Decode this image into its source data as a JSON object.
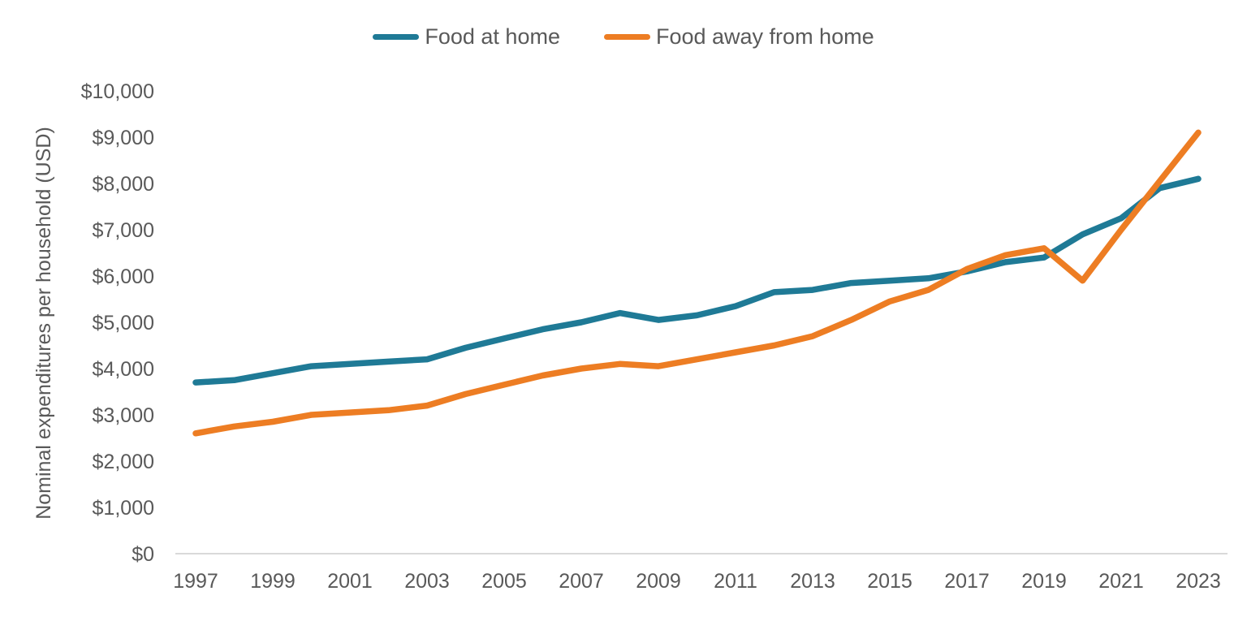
{
  "chart_data": {
    "type": "line",
    "title": "",
    "xlabel": "",
    "ylabel": "Nominal expenditures per household (USD)",
    "ylim": [
      0,
      10000
    ],
    "grid": false,
    "legend_position": "top",
    "x": [
      1997,
      1998,
      1999,
      2000,
      2001,
      2002,
      2003,
      2004,
      2005,
      2006,
      2007,
      2008,
      2009,
      2010,
      2011,
      2012,
      2013,
      2014,
      2015,
      2016,
      2017,
      2018,
      2019,
      2020,
      2021,
      2022,
      2023
    ],
    "series": [
      {
        "name": "Food at home",
        "color": "#1F7A96",
        "values": [
          3700,
          3750,
          3900,
          4050,
          4100,
          4150,
          4200,
          4450,
          4650,
          4850,
          5000,
          5200,
          5050,
          5150,
          5350,
          5650,
          5700,
          5850,
          5900,
          5950,
          6100,
          6300,
          6400,
          6900,
          7250,
          7900,
          8100
        ]
      },
      {
        "name": "Food away from home",
        "color": "#ED7D23",
        "values": [
          2600,
          2750,
          2850,
          3000,
          3050,
          3100,
          3200,
          3450,
          3650,
          3850,
          4000,
          4100,
          4050,
          4200,
          4350,
          4500,
          4700,
          5050,
          5450,
          5700,
          6150,
          6450,
          6600,
          5900,
          7000,
          8050,
          9100
        ]
      }
    ],
    "y_ticks": [
      {
        "value": 0,
        "label": "$0"
      },
      {
        "value": 1000,
        "label": "$1,000"
      },
      {
        "value": 2000,
        "label": "$2,000"
      },
      {
        "value": 3000,
        "label": "$3,000"
      },
      {
        "value": 4000,
        "label": "$4,000"
      },
      {
        "value": 5000,
        "label": "$5,000"
      },
      {
        "value": 6000,
        "label": "$6,000"
      },
      {
        "value": 7000,
        "label": "$7,000"
      },
      {
        "value": 8000,
        "label": "$8,000"
      },
      {
        "value": 9000,
        "label": "$9,000"
      },
      {
        "value": 10000,
        "label": "$10,000"
      }
    ],
    "x_ticks": [
      {
        "value": 1997,
        "label": "1997"
      },
      {
        "value": 1999,
        "label": "1999"
      },
      {
        "value": 2001,
        "label": "2001"
      },
      {
        "value": 2003,
        "label": "2003"
      },
      {
        "value": 2005,
        "label": "2005"
      },
      {
        "value": 2007,
        "label": "2007"
      },
      {
        "value": 2009,
        "label": "2009"
      },
      {
        "value": 2011,
        "label": "2011"
      },
      {
        "value": 2013,
        "label": "2013"
      },
      {
        "value": 2015,
        "label": "2015"
      },
      {
        "value": 2017,
        "label": "2017"
      },
      {
        "value": 2019,
        "label": "2019"
      },
      {
        "value": 2021,
        "label": "2021"
      },
      {
        "value": 2023,
        "label": "2023"
      }
    ]
  },
  "legend": {
    "items": [
      {
        "label": "Food at home",
        "color": "#1F7A96"
      },
      {
        "label": "Food away from home",
        "color": "#ED7D23"
      }
    ]
  },
  "colors": {
    "axis_line": "#D9D9D9",
    "text": "#595959",
    "background": "#FFFFFF"
  }
}
